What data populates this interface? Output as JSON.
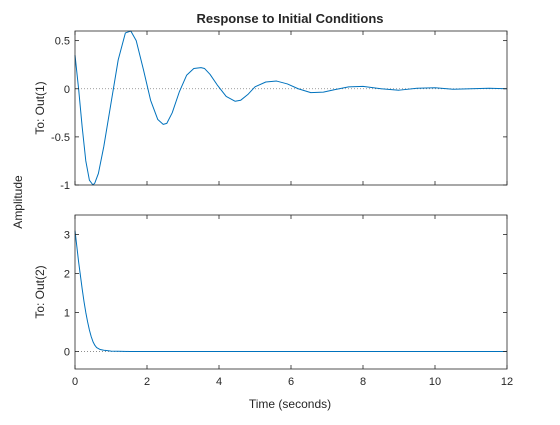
{
  "chart_data": {
    "type": "line",
    "title": "Response to Initial Conditions",
    "xlabel": "Time (seconds)",
    "ylabel": "Amplitude",
    "xlim": [
      0,
      12
    ],
    "xticks": [
      0,
      2,
      4,
      6,
      8,
      10,
      12
    ],
    "xtick_labels": [
      "0",
      "2",
      "4",
      "6",
      "8",
      "10",
      "12"
    ],
    "series_color": "#0072BD",
    "reference_line": {
      "y": 0,
      "style": "dotted",
      "color": "#7f7f7f"
    },
    "subplots": [
      {
        "ylabel": "To: Out(1)",
        "ylim": [
          -1,
          0.6
        ],
        "yticks": [
          -1,
          -0.5,
          0,
          0.5
        ],
        "ytick_labels": [
          "-1",
          "-0.5",
          "0",
          "0.5"
        ],
        "series": [
          {
            "x": [
              0,
              0.1,
              0.2,
              0.3,
              0.4,
              0.5,
              0.55,
              0.65,
              0.8,
              1.0,
              1.2,
              1.4,
              1.55,
              1.7,
              1.9,
              2.1,
              2.3,
              2.45,
              2.55,
              2.7,
              2.9,
              3.1,
              3.3,
              3.5,
              3.6,
              3.75,
              3.95,
              4.2,
              4.45,
              4.6,
              4.8,
              5.0,
              5.3,
              5.6,
              5.9,
              6.2,
              6.55,
              6.9,
              7.2,
              7.6,
              8.0,
              8.5,
              9.0,
              9.5,
              10.0,
              10.5,
              11.0,
              11.5,
              12.0
            ],
            "y": [
              0.35,
              0.0,
              -0.4,
              -0.75,
              -0.95,
              -1.0,
              -0.98,
              -0.88,
              -0.6,
              -0.15,
              0.3,
              0.58,
              0.6,
              0.5,
              0.2,
              -0.12,
              -0.32,
              -0.37,
              -0.36,
              -0.25,
              -0.03,
              0.14,
              0.21,
              0.22,
              0.21,
              0.15,
              0.04,
              -0.08,
              -0.13,
              -0.12,
              -0.06,
              0.02,
              0.07,
              0.08,
              0.05,
              0.0,
              -0.04,
              -0.035,
              -0.01,
              0.02,
              0.025,
              0.0,
              -0.015,
              0.005,
              0.01,
              -0.005,
              0.0,
              0.005,
              0.0
            ]
          }
        ]
      },
      {
        "ylabel": "To: Out(2)",
        "ylim": [
          -0.45,
          3.5
        ],
        "yticks": [
          0,
          1,
          2,
          3
        ],
        "ytick_labels": [
          "0",
          "1",
          "2",
          "3"
        ],
        "series": [
          {
            "x": [
              0,
              0.05,
              0.1,
              0.15,
              0.2,
              0.25,
              0.3,
              0.35,
              0.4,
              0.45,
              0.5,
              0.55,
              0.6,
              0.7,
              0.8,
              0.9,
              1.0,
              1.2,
              1.5,
              2.0,
              3.0,
              4.0,
              6.0,
              8.0,
              10.0,
              12.0
            ],
            "y": [
              3.1,
              2.7,
              2.3,
              1.95,
              1.6,
              1.28,
              1.0,
              0.76,
              0.55,
              0.38,
              0.25,
              0.16,
              0.1,
              0.05,
              0.03,
              0.02,
              0.01,
              0.005,
              0.0,
              0.0,
              0.0,
              0.0,
              0.0,
              0.0,
              0.0,
              0.0
            ]
          }
        ]
      }
    ]
  }
}
